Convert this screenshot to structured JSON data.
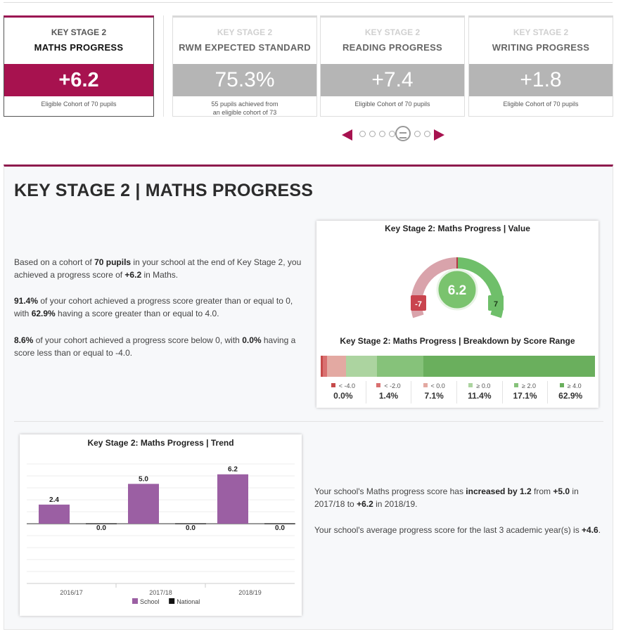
{
  "cards": [
    {
      "stage": "KEY STAGE 2",
      "metric": "MATHS PROGRESS",
      "value": "+6.2",
      "cohort": "Eligible Cohort of 70 pupils",
      "cohort2": ""
    },
    {
      "stage": "KEY STAGE 2",
      "metric": "RWM EXPECTED STANDARD",
      "value": "75.3%",
      "cohort": "55 pupils achieved from",
      "cohort2": "an eligible cohort of 73"
    },
    {
      "stage": "KEY STAGE 2",
      "metric": "READING PROGRESS",
      "value": "+7.4",
      "cohort": "Eligible Cohort of 70 pupils",
      "cohort2": ""
    },
    {
      "stage": "KEY STAGE 2",
      "metric": "WRITING PROGRESS",
      "value": "+1.8",
      "cohort": "Eligible Cohort of 70 pupils",
      "cohort2": ""
    }
  ],
  "pager": {
    "dots": 8,
    "active_index": 4
  },
  "panel": {
    "title": "KEY STAGE 2 | MATHS PROGRESS",
    "p1": {
      "t1": "Based on a cohort of ",
      "b1": "70 pupils",
      "t2": " in your school at the end of Key Stage 2, you achieved a progress score of ",
      "b2": "+6.2",
      "t3": " in Maths."
    },
    "p2": {
      "b1": "91.4%",
      "t1": " of your cohort achieved a progress score greater than or equal to 0, with ",
      "b2": "62.9%",
      "t2": " having a score greater than or equal to 4.0."
    },
    "p3": {
      "b1": "8.6%",
      "t1": " of your cohort achieved a progress score below 0, with ",
      "b2": "0.0%",
      "t2": " having a score less than or equal to -4.0."
    },
    "t1": {
      "t1": "Your school's Maths progress score has ",
      "b1": "increased by 1.2",
      "t2": " from ",
      "b2": "+5.0",
      "t3": " in 2017/18 to ",
      "b3": "+6.2",
      "t4": " in 2018/19."
    },
    "t2": {
      "t1": "Your school's average progress score for the last 3 academic year(s) is ",
      "b1": "+4.6",
      "t2": "."
    }
  },
  "gauge": {
    "title": "Key Stage 2: Maths Progress | Value",
    "value": 6.2,
    "value_label": "6.2",
    "min": -7,
    "max": 7,
    "min_label": "-7",
    "max_label": "7",
    "neg_color": "#d9a3ab",
    "pos_color": "#6fbf6a",
    "center_color": "#7ac36e",
    "min_color": "#c9444e"
  },
  "breakdown": {
    "title": "Key Stage 2: Maths Progress | Breakdown by Score Range",
    "items": [
      {
        "label": "< -4.0",
        "value": "0.0%",
        "pct": 0.0,
        "color": "#c64a4a"
      },
      {
        "label": "< -2.0",
        "value": "1.4%",
        "pct": 1.4,
        "color": "#d97070"
      },
      {
        "label": "< 0.0",
        "value": "7.1%",
        "pct": 7.1,
        "color": "#e3a9a2"
      },
      {
        "label": "≥ 0.0",
        "value": "11.4%",
        "pct": 11.4,
        "color": "#acd4a0"
      },
      {
        "label": "≥ 2.0",
        "value": "17.1%",
        "pct": 17.1,
        "color": "#86c27a"
      },
      {
        "label": "≥ 4.0",
        "value": "62.9%",
        "pct": 62.9,
        "color": "#6aaf5d"
      }
    ]
  },
  "chart_data": {
    "type": "bar",
    "title": "Key Stage 2: Maths Progress | Trend",
    "categories": [
      "2016/17",
      "2017/18",
      "2018/19"
    ],
    "series": [
      {
        "name": "School",
        "values": [
          2.4,
          5.0,
          6.2
        ],
        "labels": [
          "2.4",
          "5.0",
          "6.2"
        ],
        "color": "#9b5fa3"
      },
      {
        "name": "National",
        "values": [
          0.0,
          0.0,
          0.0
        ],
        "labels": [
          "0.0",
          "0.0",
          "0.0"
        ],
        "color": "#111111"
      }
    ],
    "ylim": [
      -7.5,
      7.5
    ],
    "grid": true,
    "legend": "bottom-center"
  }
}
